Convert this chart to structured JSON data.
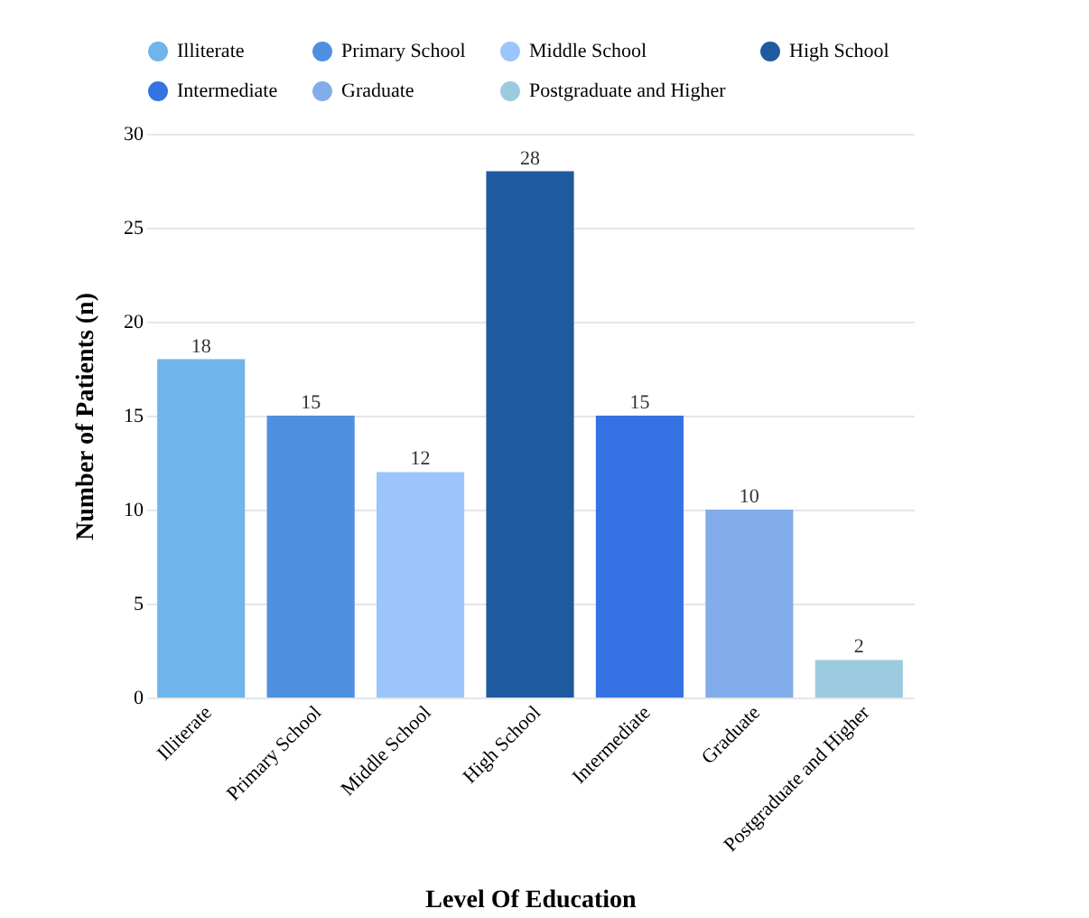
{
  "chart_data": {
    "type": "bar",
    "xlabel": "Level Of Education",
    "ylabel": "Number of Patients (n)",
    "categories": [
      "Illiterate",
      "Primary School",
      "Middle School",
      "High School",
      "Intermediate",
      "Graduate",
      "Postgraduate and Higher"
    ],
    "series": [
      {
        "name": "Illiterate",
        "color": "#6fb4ea",
        "values": [
          18,
          null,
          null,
          null,
          null,
          null,
          null
        ]
      },
      {
        "name": "Primary School",
        "color": "#4f8fe0",
        "values": [
          null,
          15,
          null,
          null,
          null,
          null,
          null
        ]
      },
      {
        "name": "Middle School",
        "color": "#9cc5fb",
        "values": [
          null,
          null,
          12,
          null,
          null,
          null,
          null
        ]
      },
      {
        "name": "High School",
        "color": "#1f5aa0",
        "values": [
          null,
          null,
          null,
          28,
          null,
          null,
          null
        ]
      },
      {
        "name": "Intermediate",
        "color": "#3572e3",
        "values": [
          null,
          null,
          null,
          null,
          15,
          null,
          null
        ]
      },
      {
        "name": "Graduate",
        "color": "#82acea",
        "values": [
          null,
          null,
          null,
          null,
          null,
          10,
          null
        ]
      },
      {
        "name": "Postgraduate and Higher",
        "color": "#9ccbe0",
        "values": [
          null,
          null,
          null,
          null,
          null,
          null,
          2
        ]
      }
    ],
    "stacked": true,
    "ylim": [
      0,
      30
    ],
    "yticks": [
      0,
      5,
      10,
      15,
      20,
      25,
      30
    ],
    "grid": "y",
    "legend": "top",
    "data_labels": true
  }
}
